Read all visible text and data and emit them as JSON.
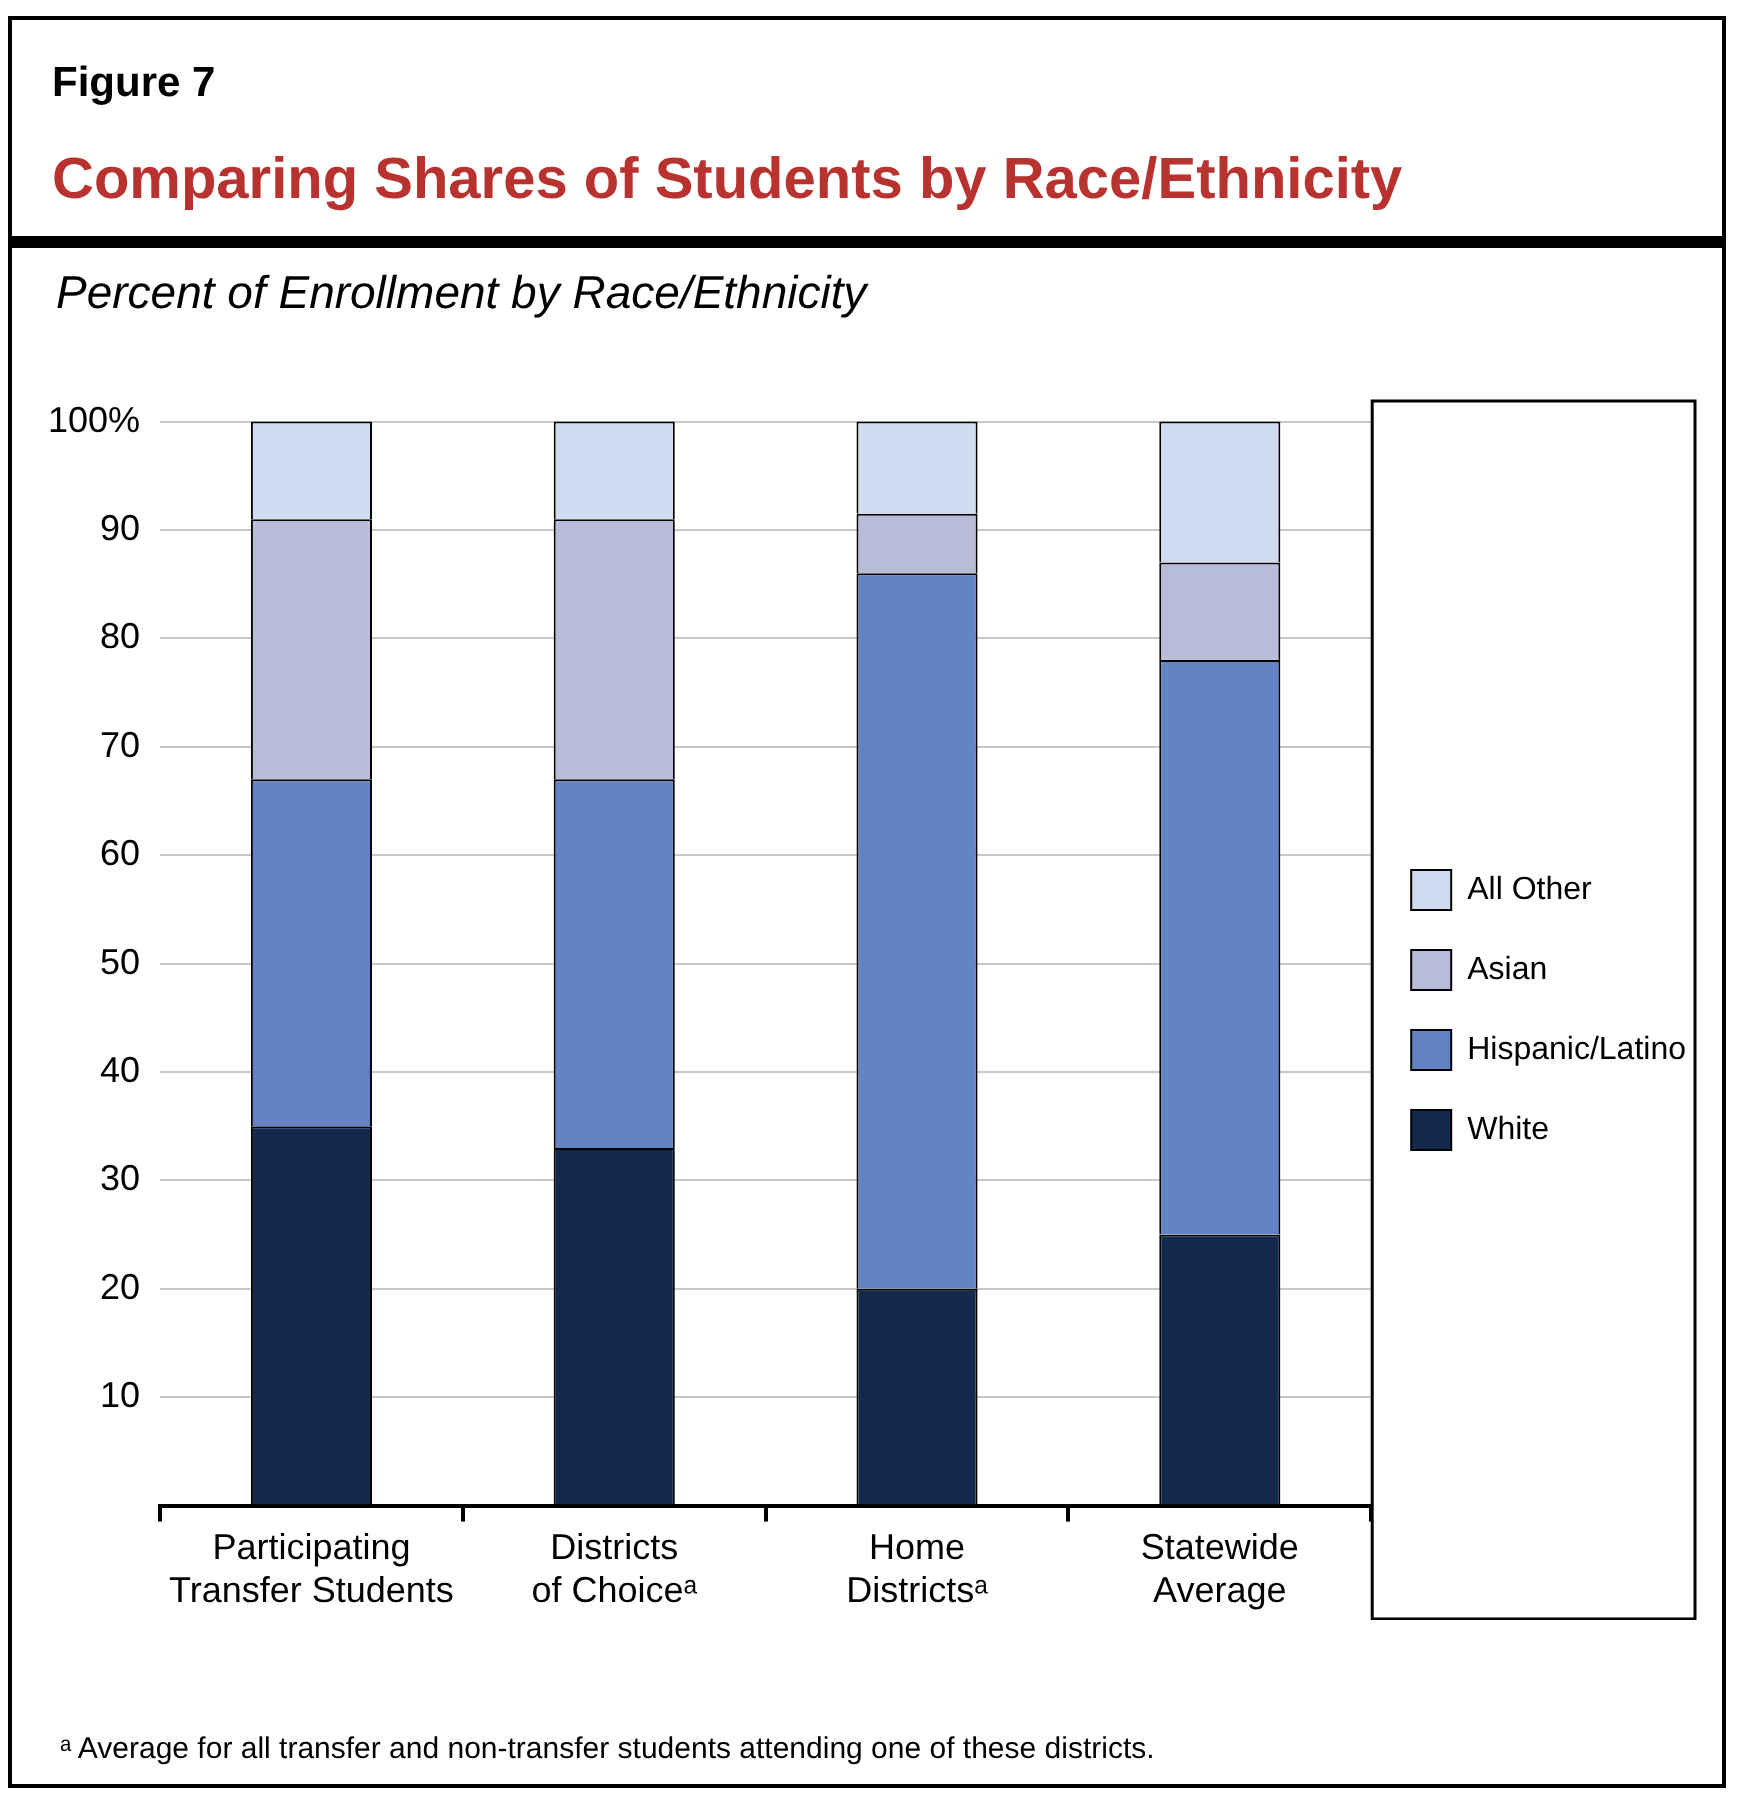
{
  "chart_data": {
    "type": "bar",
    "stacked": true,
    "subtitle": "Figure 7",
    "title": "Comparing Shares of Students by Race/Ethnicity",
    "ylabel": "Percent of Enrollment by Race/Ethnicity",
    "categories": [
      "Participating Transfer Students",
      "Districts of Choiceᵃ",
      "Home Districtsᵃ",
      "Statewide Average"
    ],
    "series": [
      {
        "name": "White",
        "color": "#132a4e",
        "values": [
          35,
          33,
          20,
          25
        ]
      },
      {
        "name": "Hispanic/Latino",
        "color": "#6283c4",
        "values": [
          32,
          34,
          66,
          53
        ]
      },
      {
        "name": "Asian",
        "color": "#b8bcd8",
        "values": [
          24,
          24,
          5.5,
          9
        ]
      },
      {
        "name": "All Other",
        "color": "#cfdcf0",
        "values": [
          9,
          9,
          8.5,
          13
        ]
      }
    ],
    "ylim": [
      0,
      100
    ],
    "yticks": [
      {
        "value": 0,
        "label": null
      },
      10,
      20,
      30,
      40,
      50,
      60,
      70,
      80,
      90,
      {
        "value": 100,
        "label": "100%"
      }
    ],
    "grid": "y",
    "legend": "right",
    "annotations": [
      "ᵃ Average for all transfer and non-transfer students attending one of these districts."
    ]
  }
}
